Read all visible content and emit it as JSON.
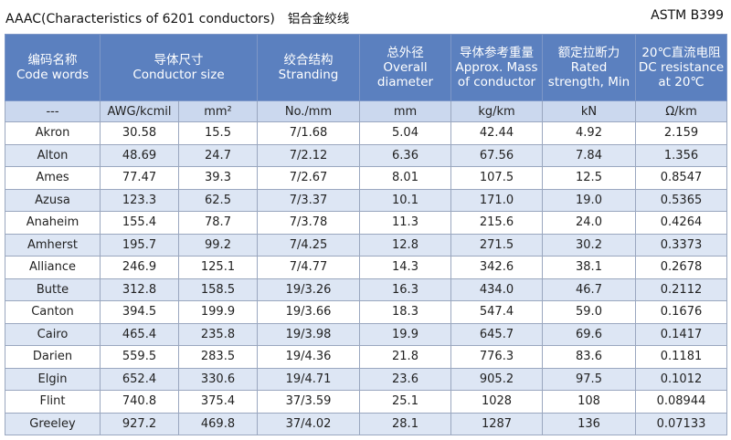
{
  "title": {
    "left": "AAAC(Characteristics of 6201 conductors)",
    "cn": "铝合金绞线",
    "right": "ASTM B399"
  },
  "headers": [
    {
      "cn": "编码名称",
      "en": "Code words"
    },
    {
      "cn": "导体尺寸",
      "en": "Conductor size"
    },
    {
      "cn": "绞合结构",
      "en": "Stranding"
    },
    {
      "cn": "总外径",
      "en": "Overall diameter"
    },
    {
      "cn": "导体参考重量",
      "en": "Approx. Mass of conductor"
    },
    {
      "cn": "额定拉断力",
      "en": "Rated strength, Min"
    },
    {
      "cn": "20℃直流电阻",
      "en": "DC resistance at 20℃"
    }
  ],
  "units": [
    "---",
    "AWG/kcmil",
    "mm²",
    "No./mm",
    "mm",
    "kg/km",
    "kN",
    "Ω/km"
  ],
  "rows": [
    [
      "Akron",
      "30.58",
      "15.5",
      "7/1.68",
      "5.04",
      "42.44",
      "4.92",
      "2.159"
    ],
    [
      "Alton",
      "48.69",
      "24.7",
      "7/2.12",
      "6.36",
      "67.56",
      "7.84",
      "1.356"
    ],
    [
      "Ames",
      "77.47",
      "39.3",
      "7/2.67",
      "8.01",
      "107.5",
      "12.5",
      "0.8547"
    ],
    [
      "Azusa",
      "123.3",
      "62.5",
      "7/3.37",
      "10.1",
      "171.0",
      "19.0",
      "0.5365"
    ],
    [
      "Anaheim",
      "155.4",
      "78.7",
      "7/3.78",
      "11.3",
      "215.6",
      "24.0",
      "0.4264"
    ],
    [
      "Amherst",
      "195.7",
      "99.2",
      "7/4.25",
      "12.8",
      "271.5",
      "30.2",
      "0.3373"
    ],
    [
      "Alliance",
      "246.9",
      "125.1",
      "7/4.77",
      "14.3",
      "342.6",
      "38.1",
      "0.2678"
    ],
    [
      "Butte",
      "312.8",
      "158.5",
      "19/3.26",
      "16.3",
      "434.0",
      "46.7",
      "0.2112"
    ],
    [
      "Canton",
      "394.5",
      "199.9",
      "19/3.66",
      "18.3",
      "547.4",
      "59.0",
      "0.1676"
    ],
    [
      "Cairo",
      "465.4",
      "235.8",
      "19/3.98",
      "19.9",
      "645.7",
      "69.6",
      "0.1417"
    ],
    [
      "Darien",
      "559.5",
      "283.5",
      "19/4.36",
      "21.8",
      "776.3",
      "83.6",
      "0.1181"
    ],
    [
      "Elgin",
      "652.4",
      "330.6",
      "19/4.71",
      "23.6",
      "905.2",
      "97.5",
      "0.1012"
    ],
    [
      "Flint",
      "740.8",
      "375.4",
      "37/3.59",
      "25.1",
      "1028",
      "108",
      "0.08944"
    ],
    [
      "Greeley",
      "927.2",
      "469.8",
      "37/4.02",
      "28.1",
      "1287",
      "136",
      "0.07133"
    ]
  ],
  "colors": {
    "header_bg": "#5b80bf",
    "unit_row_bg": "#cbd8ee",
    "stripe_bg": "#dde6f4"
  }
}
